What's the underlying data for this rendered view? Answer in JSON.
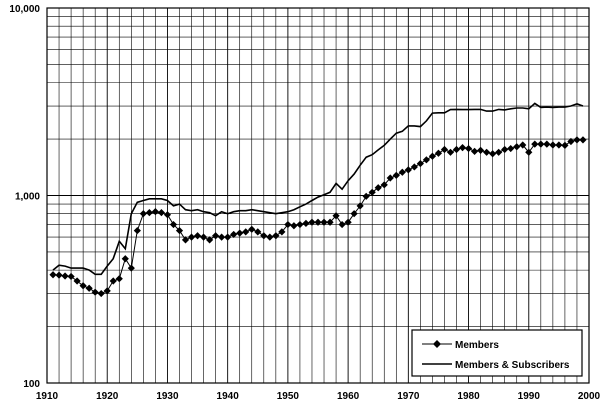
{
  "chart_data": {
    "type": "line",
    "title": "",
    "xlabel": "",
    "ylabel": "",
    "x_scale": "linear",
    "y_scale": "log",
    "xlim": [
      1910,
      2000
    ],
    "ylim": [
      100,
      10000
    ],
    "grid": true,
    "legend_position": "bottom-right",
    "x_ticks": [
      {
        "value": 1910,
        "label": "1910"
      },
      {
        "value": 1920,
        "label": "1920"
      },
      {
        "value": 1930,
        "label": "1930"
      },
      {
        "value": 1940,
        "label": "1940"
      },
      {
        "value": 1950,
        "label": "1950"
      },
      {
        "value": 1960,
        "label": "1960"
      },
      {
        "value": 1970,
        "label": "1970"
      },
      {
        "value": 1980,
        "label": "1980"
      },
      {
        "value": 1990,
        "label": "1990"
      },
      {
        "value": 2000,
        "label": "2000"
      }
    ],
    "y_ticks": [
      {
        "value": 100,
        "label": "100"
      },
      {
        "value": 1000,
        "label": "1,000"
      },
      {
        "value": 10000,
        "label": "10,000"
      }
    ],
    "series": [
      {
        "name": "Members",
        "marker": "diamond",
        "color": "#000000",
        "x": [
          1911,
          1912,
          1913,
          1914,
          1915,
          1916,
          1917,
          1918,
          1919,
          1920,
          1921,
          1922,
          1923,
          1924,
          1925,
          1926,
          1927,
          1928,
          1929,
          1930,
          1931,
          1932,
          1933,
          1934,
          1935,
          1936,
          1937,
          1938,
          1939,
          1940,
          1941,
          1942,
          1943,
          1944,
          1945,
          1946,
          1947,
          1948,
          1949,
          1950,
          1951,
          1952,
          1953,
          1954,
          1955,
          1956,
          1957,
          1958,
          1959,
          1960,
          1961,
          1962,
          1963,
          1964,
          1965,
          1966,
          1967,
          1968,
          1969,
          1970,
          1971,
          1972,
          1973,
          1974,
          1975,
          1976,
          1977,
          1978,
          1979,
          1980,
          1981,
          1982,
          1983,
          1984,
          1985,
          1986,
          1987,
          1988,
          1989,
          1990,
          1991,
          1992,
          1993,
          1994,
          1995,
          1996,
          1997,
          1998,
          1999
        ],
        "values": [
          378,
          376,
          372,
          370,
          350,
          330,
          320,
          305,
          300,
          310,
          350,
          360,
          460,
          410,
          650,
          800,
          810,
          820,
          810,
          790,
          700,
          650,
          580,
          600,
          610,
          600,
          580,
          610,
          600,
          600,
          620,
          630,
          640,
          660,
          640,
          610,
          600,
          610,
          640,
          700,
          690,
          700,
          710,
          720,
          720,
          720,
          720,
          780,
          700,
          720,
          800,
          880,
          990,
          1040,
          1100,
          1140,
          1240,
          1280,
          1330,
          1370,
          1420,
          1480,
          1550,
          1620,
          1680,
          1760,
          1700,
          1760,
          1800,
          1780,
          1720,
          1740,
          1700,
          1670,
          1700,
          1760,
          1780,
          1820,
          1860,
          1700,
          1880,
          1880,
          1880,
          1860,
          1860,
          1850,
          1940,
          1980,
          1980
        ]
      },
      {
        "name": "Members & Subscribers",
        "marker": "none",
        "color": "#000000",
        "x": [
          1911,
          1912,
          1913,
          1914,
          1915,
          1916,
          1917,
          1918,
          1919,
          1920,
          1921,
          1922,
          1923,
          1924,
          1925,
          1926,
          1927,
          1928,
          1929,
          1930,
          1931,
          1932,
          1933,
          1934,
          1935,
          1936,
          1937,
          1938,
          1939,
          1940,
          1941,
          1942,
          1943,
          1944,
          1945,
          1946,
          1947,
          1948,
          1949,
          1950,
          1951,
          1952,
          1953,
          1954,
          1955,
          1956,
          1957,
          1958,
          1959,
          1960,
          1961,
          1962,
          1963,
          1964,
          1965,
          1966,
          1967,
          1968,
          1969,
          1970,
          1971,
          1972,
          1973,
          1974,
          1975,
          1976,
          1977,
          1978,
          1979,
          1980,
          1981,
          1982,
          1983,
          1984,
          1985,
          1986,
          1987,
          1988,
          1989,
          1990,
          1991,
          1992,
          1993,
          1994,
          1995,
          1996,
          1997,
          1998,
          1999
        ],
        "values": [
          400,
          425,
          420,
          410,
          410,
          410,
          400,
          380,
          380,
          420,
          460,
          570,
          520,
          800,
          920,
          940,
          960,
          960,
          960,
          940,
          880,
          900,
          840,
          830,
          840,
          820,
          810,
          780,
          820,
          800,
          820,
          830,
          830,
          840,
          830,
          820,
          810,
          800,
          810,
          820,
          840,
          870,
          900,
          940,
          980,
          1010,
          1040,
          1160,
          1080,
          1200,
          1300,
          1450,
          1600,
          1650,
          1750,
          1850,
          2000,
          2150,
          2200,
          2350,
          2350,
          2330,
          2500,
          2750,
          2760,
          2760,
          2870,
          2880,
          2870,
          2870,
          2880,
          2880,
          2820,
          2820,
          2880,
          2860,
          2900,
          2930,
          2930,
          2900,
          3100,
          2950,
          2960,
          2950,
          2960,
          2960,
          3000,
          3080,
          3000
        ]
      }
    ]
  }
}
